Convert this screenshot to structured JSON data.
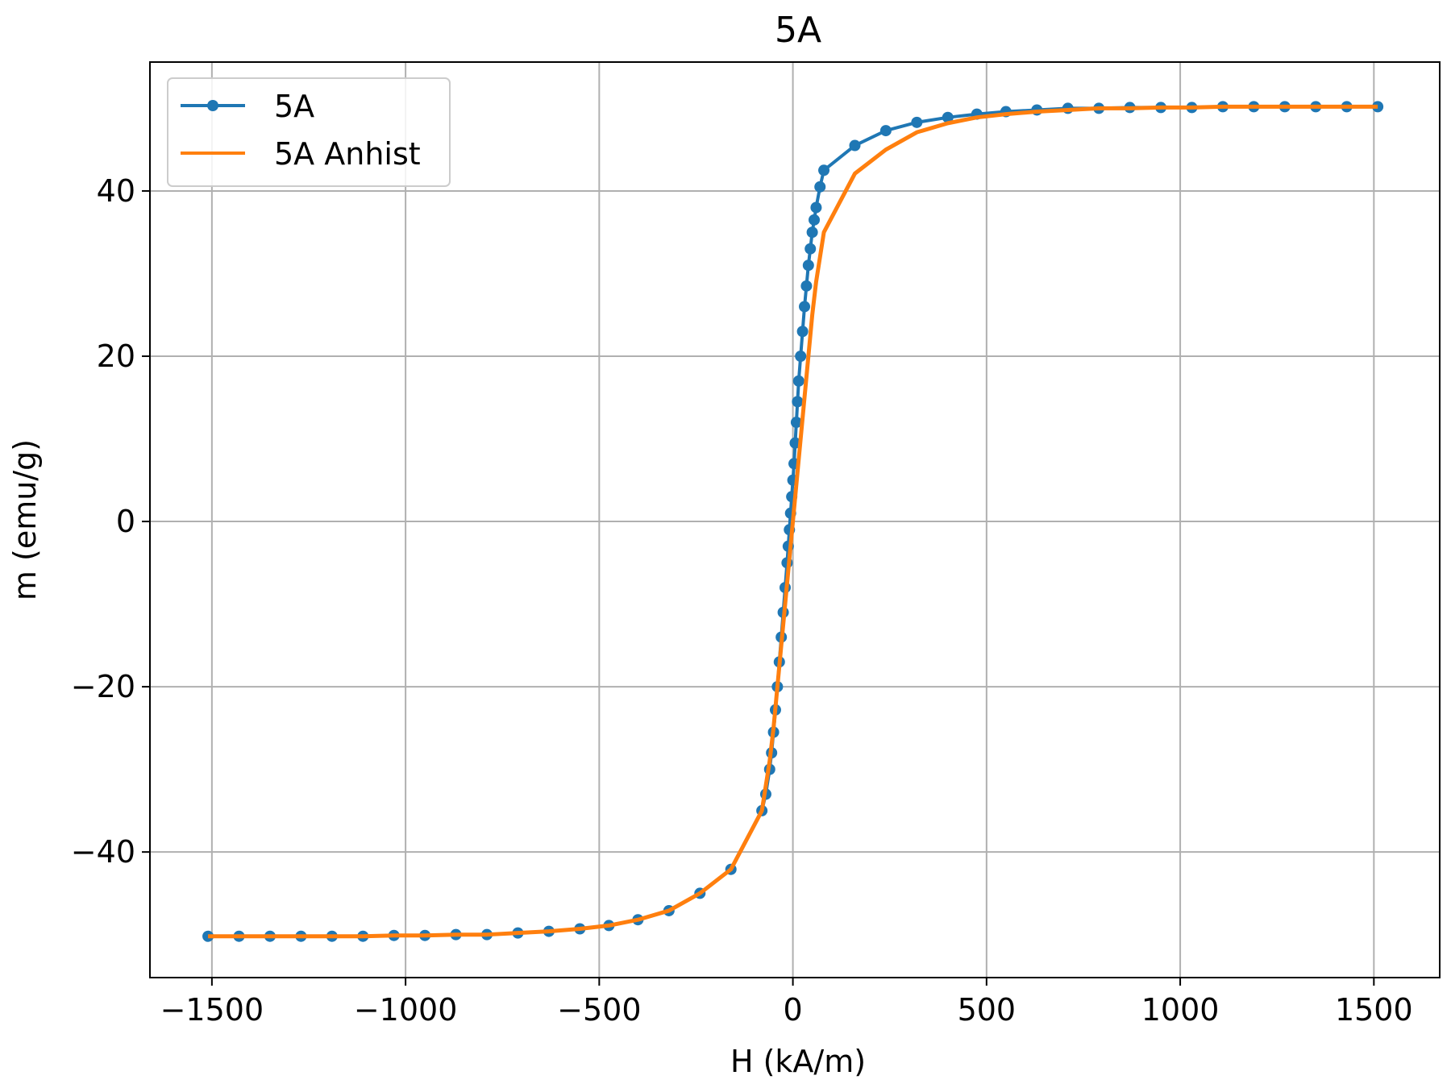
{
  "chart_data": {
    "type": "line",
    "title": "5A",
    "xlabel": "H (kA/m)",
    "ylabel": "m (emu/g)",
    "xlim": [
      -1660,
      1670
    ],
    "ylim": [
      -55.2,
      55.6
    ],
    "xticks": [
      -1500,
      -1000,
      -500,
      0,
      500,
      1000,
      1500
    ],
    "xtick_labels": [
      "−1500",
      "−1000",
      "−500",
      "0",
      "500",
      "1000",
      "1500"
    ],
    "yticks": [
      -40,
      -20,
      0,
      20,
      40
    ],
    "ytick_labels": [
      "−40",
      "−20",
      "0",
      "20",
      "40"
    ],
    "grid": true,
    "legend_position": "top-left",
    "colors": {
      "series_5A": "#1f77b4",
      "series_anhist": "#ff7f0e",
      "grid": "#b0b0b0"
    },
    "series": [
      {
        "name": "5A",
        "marker": "circle",
        "x": [
          -1510,
          -1430,
          -1350,
          -1270,
          -1190,
          -1110,
          -1030,
          -950,
          -870,
          -790,
          -710,
          -630,
          -550,
          -475,
          -400,
          -320,
          -240,
          -160,
          -80,
          -70,
          -60,
          -55,
          -50,
          -45,
          -40,
          -35,
          -30,
          -25,
          -20,
          -15,
          -12,
          -9,
          -6,
          -3,
          0,
          3,
          6,
          9,
          12,
          15,
          20,
          25,
          30,
          35,
          40,
          45,
          50,
          55,
          60,
          70,
          80,
          160,
          240,
          320,
          400,
          475,
          550,
          630,
          710,
          790,
          870,
          950,
          1030,
          1110,
          1190,
          1270,
          1350,
          1430,
          1510
        ],
        "y": [
          -50.2,
          -50.2,
          -50.2,
          -50.2,
          -50.2,
          -50.2,
          -50.1,
          -50.1,
          -50.0,
          -50.0,
          -49.8,
          -49.6,
          -49.3,
          -48.9,
          -48.2,
          -47.1,
          -45.0,
          -42.1,
          -35.0,
          -33.0,
          -30.0,
          -28.0,
          -25.5,
          -22.8,
          -20.0,
          -17.0,
          -14.0,
          -11.0,
          -8.0,
          -5.0,
          -3.0,
          -1.0,
          1.0,
          3.0,
          5.0,
          7.0,
          9.5,
          12.0,
          14.5,
          17.0,
          20.0,
          23.0,
          26.0,
          28.5,
          31.0,
          33.0,
          35.0,
          36.5,
          38.0,
          40.5,
          42.5,
          45.5,
          47.3,
          48.3,
          48.9,
          49.3,
          49.6,
          49.8,
          50.0,
          50.0,
          50.1,
          50.1,
          50.1,
          50.2,
          50.2,
          50.2,
          50.2,
          50.2,
          50.2
        ]
      },
      {
        "name": "5A Anhist",
        "marker": "none",
        "x": [
          -1510,
          -1430,
          -1350,
          -1270,
          -1190,
          -1110,
          -1030,
          -950,
          -870,
          -790,
          -710,
          -630,
          -550,
          -475,
          -400,
          -320,
          -240,
          -160,
          -80,
          -70,
          -60,
          -50,
          -40,
          -30,
          -20,
          -10,
          0,
          10,
          20,
          30,
          40,
          50,
          60,
          70,
          80,
          160,
          240,
          320,
          400,
          475,
          550,
          630,
          710,
          790,
          870,
          950,
          1030,
          1110,
          1190,
          1270,
          1350,
          1430,
          1510
        ],
        "y": [
          -50.2,
          -50.2,
          -50.2,
          -50.2,
          -50.2,
          -50.2,
          -50.1,
          -50.1,
          -50.0,
          -50.0,
          -49.8,
          -49.6,
          -49.3,
          -48.9,
          -48.2,
          -47.1,
          -45.0,
          -42.1,
          -35.0,
          -32.0,
          -29.0,
          -25.0,
          -20.0,
          -15.0,
          -10.0,
          -5.0,
          0.0,
          5.0,
          10.0,
          15.0,
          20.0,
          25.0,
          29.0,
          32.0,
          35.0,
          42.1,
          45.0,
          47.1,
          48.2,
          48.9,
          49.3,
          49.6,
          49.8,
          50.0,
          50.0,
          50.1,
          50.1,
          50.2,
          50.2,
          50.2,
          50.2,
          50.2,
          50.2
        ]
      }
    ]
  }
}
